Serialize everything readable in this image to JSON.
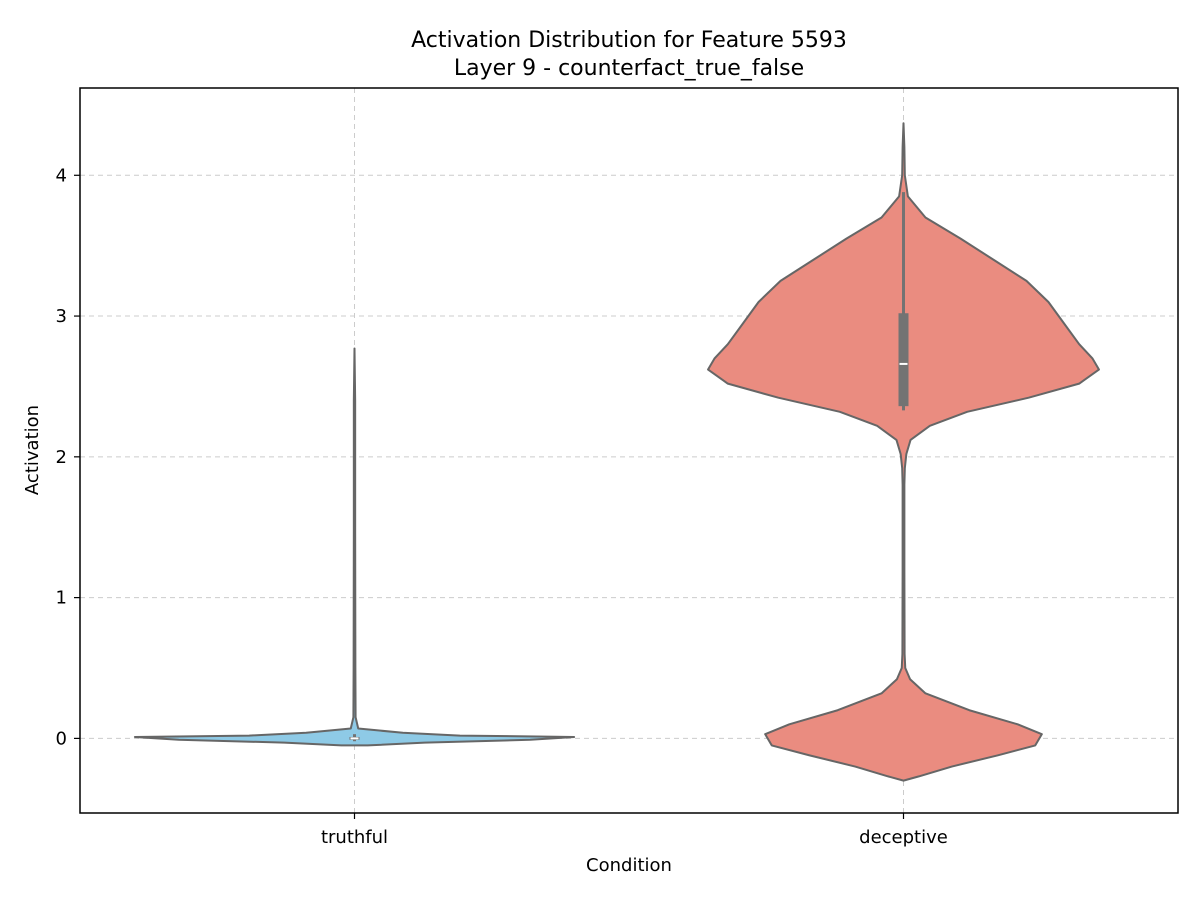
{
  "chart_data": {
    "type": "violin",
    "title": "Activation Distribution for Feature 5593",
    "subtitle": "Layer 9 - counterfact_true_false",
    "xlabel": "Condition",
    "ylabel": "Activation",
    "categories": [
      "truthful",
      "deceptive"
    ],
    "ylim": [
      -0.53,
      4.62
    ],
    "yticks": [
      0,
      1,
      2,
      3,
      4
    ],
    "grid": true,
    "colors": {
      "truthful": "#8ecae6",
      "deceptive": "#ea8c80",
      "outline": "#666666",
      "box": "#737373",
      "median": "#ffffff",
      "grid": "#cccccc"
    },
    "violins": [
      {
        "category": "truthful",
        "color": "#8ecae6",
        "median": 0.0,
        "q1": -0.01,
        "q3": 0.01,
        "whisker_low": -0.02,
        "whisker_high": 0.03,
        "max": 2.77,
        "density": [
          [
            2.77,
            0.0
          ],
          [
            2.4,
            0.003
          ],
          [
            1.5,
            0.003
          ],
          [
            0.5,
            0.004
          ],
          [
            0.15,
            0.005
          ],
          [
            0.07,
            0.017
          ],
          [
            0.04,
            0.22
          ],
          [
            0.02,
            0.48
          ],
          [
            0.01,
            1.0
          ],
          [
            -0.01,
            0.8
          ],
          [
            -0.03,
            0.32
          ],
          [
            -0.05,
            0.06
          ]
        ]
      },
      {
        "category": "deceptive",
        "color": "#ea8c80",
        "median": 2.66,
        "q1": 2.36,
        "q3": 3.02,
        "whisker_low": 2.33,
        "whisker_high": 3.88,
        "max": 4.37,
        "min": -0.3,
        "density": [
          [
            4.37,
            0.0
          ],
          [
            4.2,
            0.004
          ],
          [
            4.0,
            0.006
          ],
          [
            3.85,
            0.02
          ],
          [
            3.7,
            0.1
          ],
          [
            3.55,
            0.26
          ],
          [
            3.4,
            0.41
          ],
          [
            3.25,
            0.56
          ],
          [
            3.1,
            0.66
          ],
          [
            2.95,
            0.73
          ],
          [
            2.8,
            0.8
          ],
          [
            2.7,
            0.86
          ],
          [
            2.62,
            0.89
          ],
          [
            2.52,
            0.8
          ],
          [
            2.42,
            0.57
          ],
          [
            2.32,
            0.29
          ],
          [
            2.22,
            0.12
          ],
          [
            2.12,
            0.032
          ],
          [
            2.02,
            0.013
          ],
          [
            1.92,
            0.006
          ],
          [
            1.8,
            0.004
          ],
          [
            1.2,
            0.004
          ],
          [
            0.6,
            0.005
          ],
          [
            0.5,
            0.008
          ],
          [
            0.42,
            0.03
          ],
          [
            0.32,
            0.1
          ],
          [
            0.2,
            0.3
          ],
          [
            0.1,
            0.52
          ],
          [
            0.03,
            0.63
          ],
          [
            -0.05,
            0.6
          ],
          [
            -0.12,
            0.43
          ],
          [
            -0.2,
            0.22
          ],
          [
            -0.27,
            0.07
          ],
          [
            -0.3,
            0.0
          ]
        ]
      }
    ]
  }
}
